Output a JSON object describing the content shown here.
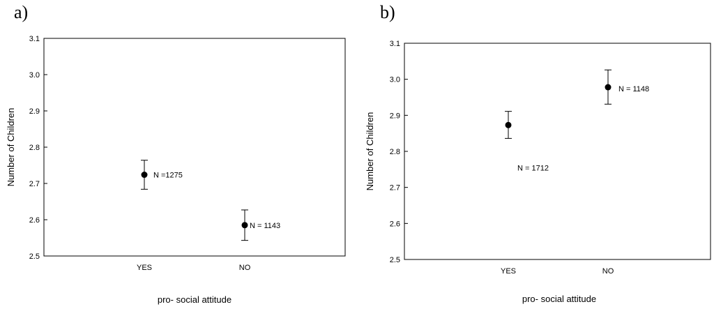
{
  "chart_data": [
    {
      "type": "scatter",
      "panel_label": "a)",
      "xlabel": "pro- social attitude",
      "ylabel": "Number of Children",
      "categories": [
        "YES",
        "NO"
      ],
      "ylim": [
        2.5,
        3.1
      ],
      "yticks": [
        "2.5",
        "2.6",
        "2.7",
        "2.8",
        "2.9",
        "3.0",
        "3.1"
      ],
      "points": [
        {
          "category": "YES",
          "value": 2.724,
          "lower": 2.684,
          "upper": 2.764,
          "label": "N =1275"
        },
        {
          "category": "NO",
          "value": 2.585,
          "lower": 2.543,
          "upper": 2.627,
          "label": "N = 1143"
        }
      ]
    },
    {
      "type": "scatter",
      "panel_label": "b)",
      "xlabel": "pro- social attitude",
      "ylabel": "Number of Children",
      "categories": [
        "YES",
        "NO"
      ],
      "ylim": [
        2.5,
        3.1
      ],
      "yticks": [
        "2.5",
        "2.6",
        "2.7",
        "2.8",
        "2.9",
        "3.0",
        "3.1"
      ],
      "points": [
        {
          "category": "YES",
          "value": 2.873,
          "lower": 2.836,
          "upper": 2.911,
          "label": "N = 1712"
        },
        {
          "category": "NO",
          "value": 2.978,
          "lower": 2.931,
          "upper": 3.026,
          "label": "N = 1148"
        }
      ]
    }
  ]
}
